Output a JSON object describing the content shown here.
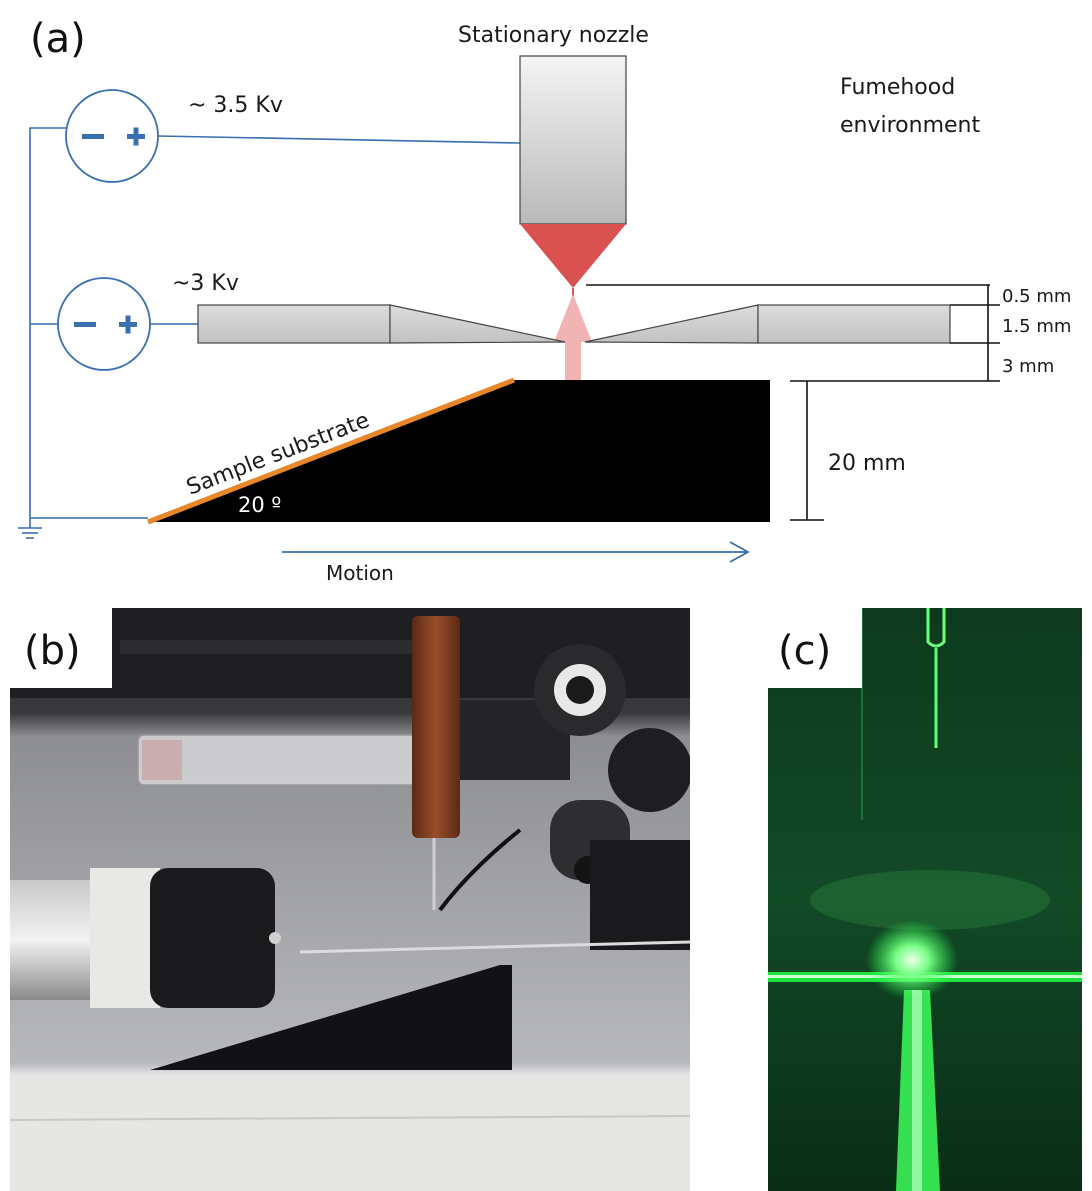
{
  "panels": {
    "a": {
      "label": "(a)"
    },
    "b": {
      "label": "(b)"
    },
    "c": {
      "label": "(c)"
    }
  },
  "diagram": {
    "nozzle_label": "Stationary nozzle",
    "environment_label_line1": "Fumehood",
    "environment_label_line2": "environment",
    "supply_top": {
      "voltage": "~ 3.5 Kv",
      "minus": "−",
      "plus": "+"
    },
    "supply_bottom": {
      "voltage": "~3 Kv",
      "minus": "−",
      "plus": "+"
    },
    "dimensions": {
      "gap_top": "0.5 mm",
      "plate_thickness": "1.5 mm",
      "gap_bottom": "3 mm",
      "stage_height": "20 mm"
    },
    "substrate_label": "Sample substrate",
    "angle_label": "20 º",
    "motion_label": "Motion",
    "colors": {
      "wire": "#3a6fb0",
      "nozzle_tip": "#d9524f",
      "jet": "#f0b4b4",
      "substrate": "#e8862a",
      "stage": "#000000",
      "laser": "#22ff44"
    }
  }
}
